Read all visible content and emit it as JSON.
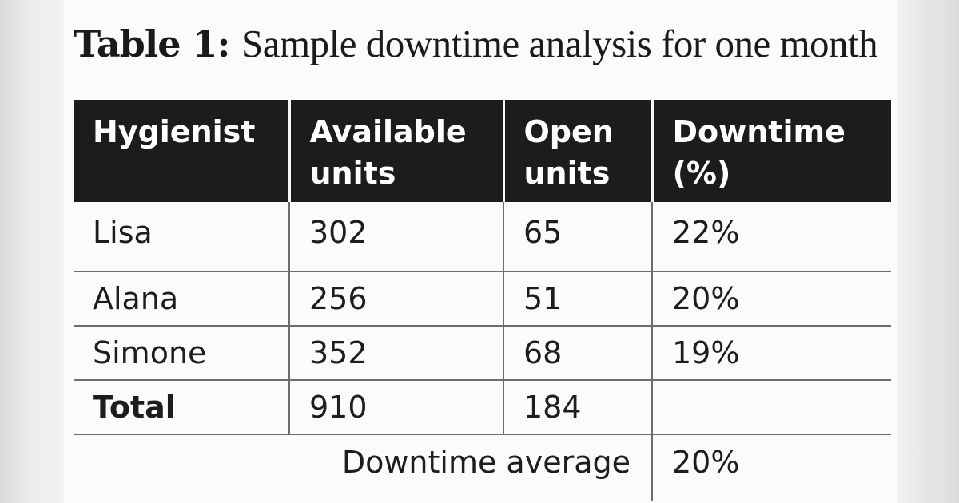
{
  "title": {
    "tag": "Table 1:",
    "text": "Sample downtime analysis for one month"
  },
  "table": {
    "headers": [
      [
        "Hygienist"
      ],
      [
        "Available",
        "units"
      ],
      [
        "Open",
        "units"
      ],
      [
        "Downtime",
        "(%)"
      ]
    ],
    "rows": [
      {
        "hygienist": "Lisa",
        "available": "302",
        "open": "65",
        "downtime": "22%"
      },
      {
        "hygienist": "Alana",
        "available": "256",
        "open": "51",
        "downtime": "20%"
      },
      {
        "hygienist": "Simone",
        "available": "352",
        "open": "68",
        "downtime": "19%"
      }
    ],
    "total": {
      "label": "Total",
      "available": "910",
      "open": "184",
      "downtime": ""
    },
    "average": {
      "label": "Downtime average",
      "value": "20%"
    }
  }
}
